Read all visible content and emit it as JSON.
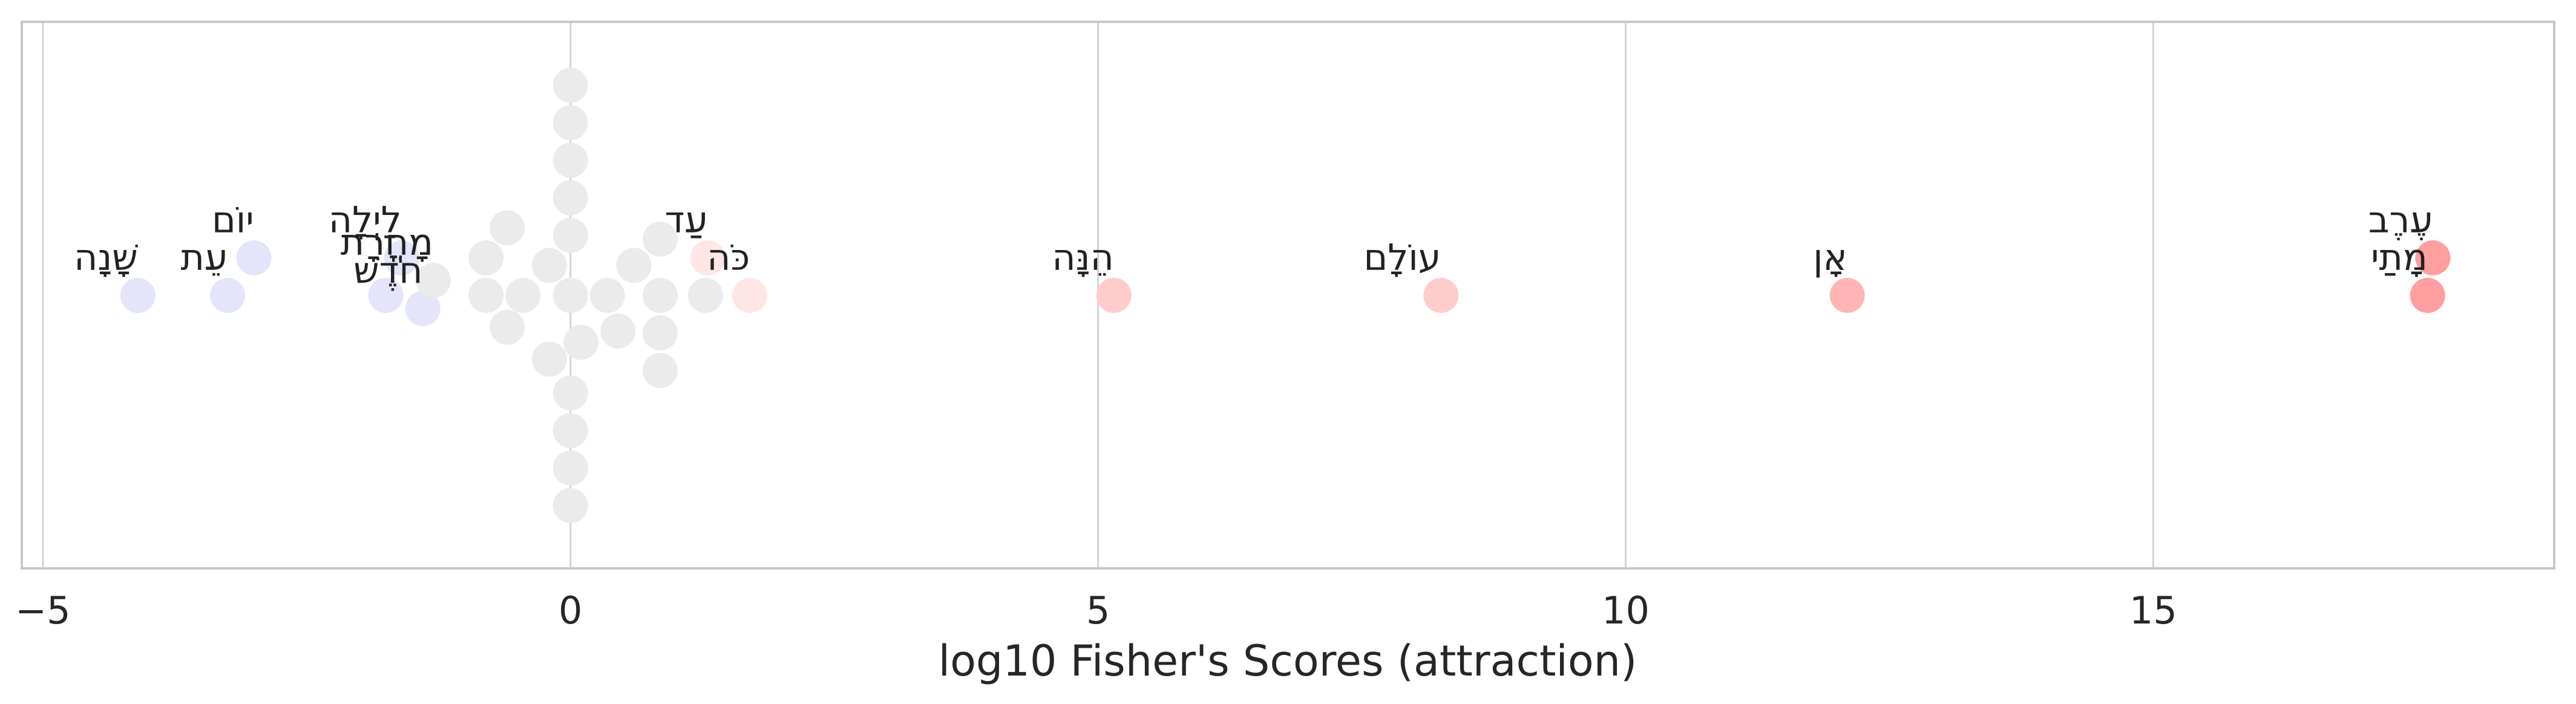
{
  "chart_data": {
    "type": "scatter",
    "title": "",
    "xlabel": "log10 Fisher's Scores (attraction)",
    "ylabel": "",
    "xlim": [
      -5.2,
      18.8
    ],
    "xticks": [
      -5,
      0,
      5,
      10,
      15
    ],
    "xtick_labels": [
      "−5",
      "0",
      "5",
      "10",
      "15"
    ],
    "grid": true,
    "grid_axis": "x",
    "legend": "none",
    "colors": {
      "repulsion": "#e4e4fa",
      "neutral": "#ebebeb",
      "attraction_weak": "#ffe6e6",
      "attraction_mid": "#ffcccc",
      "attraction_strong": "#ffb5b5",
      "attraction_max": "#ff9e9e",
      "grid": "#d3d3d3",
      "frame": "#c8c8c8"
    },
    "points": [
      {
        "x": -4.1,
        "level": 0,
        "label": "שָׁנָה",
        "color": "#e4e4fa"
      },
      {
        "x": -3.25,
        "level": 0,
        "label": "עֵת",
        "color": "#e4e4fa"
      },
      {
        "x": -3.0,
        "level": 1,
        "label": "יוֹם",
        "color": "#e4e4fa"
      },
      {
        "x": -1.75,
        "level": 0,
        "label": "",
        "color": "#e4e4fa"
      },
      {
        "x": -1.6,
        "level": 1,
        "label": "לַיְלָה",
        "color": "#e4e4fa"
      },
      {
        "x": -1.4,
        "level": -0.35,
        "label": "חֹדֶשׁ",
        "color": "#e4e4fa"
      },
      {
        "x": -1.3,
        "level": 0.4,
        "label": "מָחֳרָת",
        "color": "#ebebeb"
      },
      {
        "x": -0.8,
        "level": 0,
        "label": "",
        "color": "#ebebeb"
      },
      {
        "x": -0.8,
        "level": 1,
        "label": "",
        "color": "#ebebeb"
      },
      {
        "x": -0.6,
        "level": -0.85,
        "label": "",
        "color": "#ebebeb"
      },
      {
        "x": -0.6,
        "level": 1.8,
        "label": "",
        "color": "#ebebeb"
      },
      {
        "x": -0.45,
        "level": 0,
        "label": "",
        "color": "#ebebeb"
      },
      {
        "x": -0.2,
        "level": 0.8,
        "label": "",
        "color": "#ebebeb"
      },
      {
        "x": -0.2,
        "level": -1.7,
        "label": "",
        "color": "#ebebeb"
      },
      {
        "x": 0,
        "level": 0,
        "label": "",
        "color": "#ebebeb"
      },
      {
        "x": 0,
        "level": 1.6,
        "label": "",
        "color": "#ebebeb"
      },
      {
        "x": 0,
        "level": 2.6,
        "label": "",
        "color": "#ebebeb"
      },
      {
        "x": 0,
        "level": 3.6,
        "label": "",
        "color": "#ebebeb"
      },
      {
        "x": 0,
        "level": 4.6,
        "label": "",
        "color": "#ebebeb"
      },
      {
        "x": 0,
        "level": 5.6,
        "label": "",
        "color": "#ebebeb"
      },
      {
        "x": 0,
        "level": -2.6,
        "label": "",
        "color": "#ebebeb"
      },
      {
        "x": 0,
        "level": -3.6,
        "label": "",
        "color": "#ebebeb"
      },
      {
        "x": 0,
        "level": -4.6,
        "label": "",
        "color": "#ebebeb"
      },
      {
        "x": 0,
        "level": -5.6,
        "label": "",
        "color": "#ebebeb"
      },
      {
        "x": 0.1,
        "level": -1.25,
        "label": "",
        "color": "#ebebeb"
      },
      {
        "x": 0.35,
        "level": 0,
        "label": "",
        "color": "#ebebeb"
      },
      {
        "x": 0.45,
        "level": -0.95,
        "label": "",
        "color": "#ebebeb"
      },
      {
        "x": 0.6,
        "level": 0.8,
        "label": "",
        "color": "#ebebeb"
      },
      {
        "x": 0.85,
        "level": 0,
        "label": "",
        "color": "#ebebeb"
      },
      {
        "x": 0.85,
        "level": 1.5,
        "label": "",
        "color": "#ebebeb"
      },
      {
        "x": 0.85,
        "level": -1.0,
        "label": "",
        "color": "#ebebeb"
      },
      {
        "x": 0.85,
        "level": -2.0,
        "label": "",
        "color": "#ebebeb"
      },
      {
        "x": 1.28,
        "level": 0,
        "label": "",
        "color": "#ebebeb"
      },
      {
        "x": 1.3,
        "level": 1.0,
        "label": "עַד",
        "color": "#ffe6e6"
      },
      {
        "x": 1.7,
        "level": 0,
        "label": "כֹּה",
        "color": "#ffe6e6"
      },
      {
        "x": 5.15,
        "level": 0,
        "label": "הֵנָּה",
        "color": "#ffcccc"
      },
      {
        "x": 8.25,
        "level": 0,
        "label": "עוֹלָם",
        "color": "#ffcccc"
      },
      {
        "x": 12.1,
        "level": 0,
        "label": "אָן",
        "color": "#ffb5b5"
      },
      {
        "x": 17.6,
        "level": 0,
        "label": "מָתַי",
        "color": "#ff9e9e"
      },
      {
        "x": 17.65,
        "level": 1,
        "label": "עֶרֶב",
        "color": "#ff9e9e"
      }
    ]
  }
}
